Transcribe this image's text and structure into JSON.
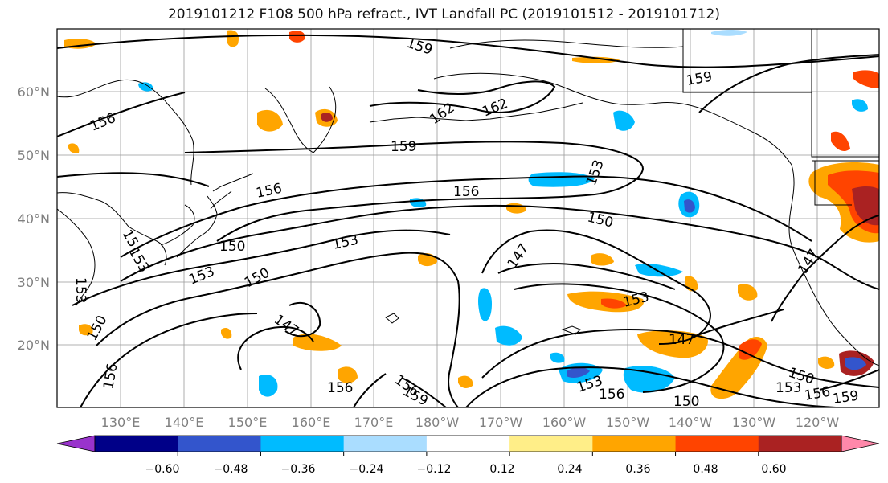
{
  "title": "2019101212 F108 500 hPa refract., IVT Landfall PC (2019101512 - 2019101712)",
  "map": {
    "lat_labels": [
      "60°N",
      "50°N",
      "40°N",
      "30°N",
      "20°N"
    ],
    "lon_labels": [
      "130°E",
      "140°E",
      "150°E",
      "160°E",
      "170°E",
      "180°W",
      "170°W",
      "160°W",
      "150°W",
      "140°W",
      "130°W",
      "120°W"
    ],
    "contour_labels": [
      {
        "text": "159"
      },
      {
        "text": "156"
      },
      {
        "text": "162"
      },
      {
        "text": "162"
      },
      {
        "text": "159"
      },
      {
        "text": "159"
      },
      {
        "text": "156"
      },
      {
        "text": "156"
      },
      {
        "text": "153"
      },
      {
        "text": "150"
      },
      {
        "text": "153"
      },
      {
        "text": "150"
      },
      {
        "text": "153"
      },
      {
        "text": "150"
      },
      {
        "text": "153"
      },
      {
        "text": "147"
      },
      {
        "text": "147"
      },
      {
        "text": "153"
      },
      {
        "text": "147"
      },
      {
        "text": "150"
      },
      {
        "text": "153"
      },
      {
        "text": "156"
      },
      {
        "text": "159"
      },
      {
        "text": "156"
      },
      {
        "text": "156"
      },
      {
        "text": "159"
      },
      {
        "text": "150"
      },
      {
        "text": "150"
      },
      {
        "text": "153"
      },
      {
        "text": "156"
      },
      {
        "text": "156"
      },
      {
        "text": "15"
      },
      {
        "text": "153"
      },
      {
        "text": "147"
      }
    ]
  },
  "colorbar": {
    "tick_labels": [
      "−0.60",
      "−0.48",
      "−0.36",
      "−0.24",
      "−0.12",
      "0.12",
      "0.24",
      "0.36",
      "0.48",
      "0.60"
    ],
    "colors": [
      "#9933cc",
      "#000088",
      "#3355cc",
      "#00bbff",
      "#aaddff",
      "#ffffff",
      "#ffee88",
      "#ffa500",
      "#ff4400",
      "#aa2222",
      "#ff88aa"
    ]
  }
}
